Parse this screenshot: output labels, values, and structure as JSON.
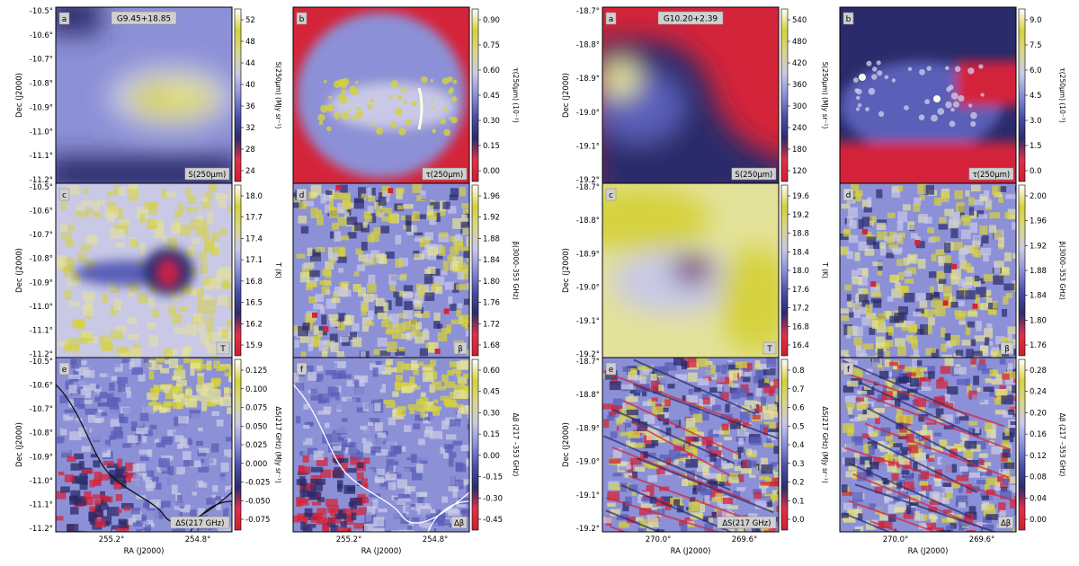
{
  "axis_labels": {
    "ra": "RA (J2000)",
    "dec": "Dec (J2000)"
  },
  "colormap": {
    "stops": [
      "#cc1f2f",
      "#e0304a",
      "#2b2d6e",
      "#4b4fa8",
      "#8a8fd8",
      "#c8c9e8",
      "#d8d78a",
      "#d6d23a",
      "#ffffff"
    ]
  },
  "fields": [
    {
      "name": "G9.45+18.85",
      "dec_ticks": [
        "-10.5°",
        "-10.6°",
        "-10.7°",
        "-10.8°",
        "-10.9°",
        "-11.0°",
        "-11.1°",
        "-11.2°"
      ],
      "ra_ticks": [
        "255.2°",
        "254.8°"
      ],
      "panels": [
        {
          "letter": "a",
          "title_label": "G9.45+18.85",
          "corner_label": "S(250μm)",
          "cbar_label": "S(250μm) (MJy sr⁻¹)",
          "cbar_ticks": [
            "52",
            "48",
            "44",
            "40",
            "36",
            "32",
            "28",
            "24"
          ]
        },
        {
          "letter": "b",
          "corner_label": "τ(250μm)",
          "cbar_label": "τ(250μm) (10⁻³)",
          "cbar_ticks": [
            "0.90",
            "0.75",
            "0.60",
            "0.45",
            "0.30",
            "0.15",
            "0.00"
          ]
        },
        {
          "letter": "c",
          "corner_label": "T",
          "cbar_label": "T (K)",
          "cbar_ticks": [
            "18.0",
            "17.7",
            "17.4",
            "17.1",
            "16.8",
            "16.5",
            "16.2",
            "15.9"
          ]
        },
        {
          "letter": "d",
          "corner_label": "β",
          "cbar_label": "β(3000–353 GHz)",
          "cbar_ticks": [
            "1.96",
            "1.92",
            "1.88",
            "1.84",
            "1.80",
            "1.76",
            "1.72",
            "1.68"
          ]
        },
        {
          "letter": "e",
          "corner_label": "ΔS(217 GHz)",
          "cbar_label": "ΔS(217 GHz) (MJy sr⁻¹)",
          "cbar_ticks": [
            "0.125",
            "0.100",
            "0.075",
            "0.050",
            "0.025",
            "0.000",
            "-0.025",
            "-0.050",
            "-0.075"
          ]
        },
        {
          "letter": "f",
          "corner_label": "Δβ",
          "cbar_label": "Δβ (217 –353 GHz)",
          "cbar_ticks": [
            "0.60",
            "0.45",
            "0.30",
            "0.15",
            "0.00",
            "-0.15",
            "-0.30",
            "-0.45"
          ]
        }
      ]
    },
    {
      "name": "G10.20+2.39",
      "dec_ticks": [
        "-18.7°",
        "-18.8°",
        "-18.9°",
        "-19.0°",
        "-19.1°",
        "-19.2°"
      ],
      "ra_ticks": [
        "270.0°",
        "269.6°"
      ],
      "panels": [
        {
          "letter": "a",
          "title_label": "G10.20+2.39",
          "corner_label": "S(250μm)",
          "cbar_label": "S(250μm) (MJy sr⁻¹)",
          "cbar_ticks": [
            "540",
            "480",
            "420",
            "360",
            "300",
            "240",
            "180",
            "120"
          ]
        },
        {
          "letter": "b",
          "corner_label": "τ(250μm)",
          "cbar_label": "τ(250μm) (10⁻³)",
          "cbar_ticks": [
            "9.0",
            "7.5",
            "6.0",
            "4.5",
            "3.0",
            "1.5",
            "0.0"
          ]
        },
        {
          "letter": "c",
          "corner_label": "T",
          "cbar_label": "T (K)",
          "cbar_ticks": [
            "19.6",
            "19.2",
            "18.8",
            "18.4",
            "18.0",
            "17.6",
            "17.2",
            "16.8",
            "16.4"
          ]
        },
        {
          "letter": "d",
          "corner_label": "β",
          "cbar_label": "β(3000–353 GHz)",
          "cbar_ticks": [
            "2.00",
            "1.96",
            "1.92",
            "1.88",
            "1.84",
            "1.80",
            "1.76"
          ]
        },
        {
          "letter": "e",
          "corner_label": "ΔS(217 GHz)",
          "cbar_label": "ΔS(217 GHz) (MJy sr⁻¹)",
          "cbar_ticks": [
            "0.8",
            "0.7",
            "0.6",
            "0.5",
            "0.4",
            "0.3",
            "0.2",
            "0.1",
            "0.0"
          ]
        },
        {
          "letter": "f",
          "corner_label": "Δβ",
          "cbar_label": "Δβ (217 –353 GHz)",
          "cbar_ticks": [
            "0.28",
            "0.24",
            "0.20",
            "0.16",
            "0.12",
            "0.08",
            "0.04",
            "0.00"
          ]
        }
      ]
    }
  ]
}
